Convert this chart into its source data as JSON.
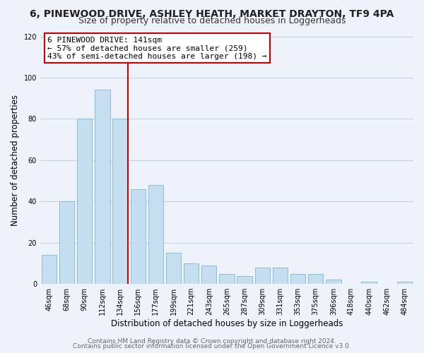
{
  "title": "6, PINEWOOD DRIVE, ASHLEY HEATH, MARKET DRAYTON, TF9 4PA",
  "subtitle": "Size of property relative to detached houses in Loggerheads",
  "xlabel": "Distribution of detached houses by size in Loggerheads",
  "ylabel": "Number of detached properties",
  "bar_labels": [
    "46sqm",
    "68sqm",
    "90sqm",
    "112sqm",
    "134sqm",
    "156sqm",
    "177sqm",
    "199sqm",
    "221sqm",
    "243sqm",
    "265sqm",
    "287sqm",
    "309sqm",
    "331sqm",
    "353sqm",
    "375sqm",
    "396sqm",
    "418sqm",
    "440sqm",
    "462sqm",
    "484sqm"
  ],
  "bar_values": [
    14,
    40,
    80,
    94,
    80,
    46,
    48,
    15,
    10,
    9,
    5,
    4,
    8,
    8,
    5,
    5,
    2,
    0,
    1,
    0,
    1
  ],
  "bar_color": "#c5dff0",
  "bar_edge_color": "#7fb8d8",
  "vline_color": "#cc0000",
  "vline_bar_index": 4,
  "ylim": [
    0,
    120
  ],
  "yticks": [
    0,
    20,
    40,
    60,
    80,
    100,
    120
  ],
  "annotation_title": "6 PINEWOOD DRIVE: 141sqm",
  "annotation_line1": "← 57% of detached houses are smaller (259)",
  "annotation_line2": "43% of semi-detached houses are larger (198) →",
  "footer1": "Contains HM Land Registry data © Crown copyright and database right 2024.",
  "footer2": "Contains public sector information licensed under the Open Government Licence v3.0.",
  "background_color": "#eef2fb",
  "plot_bg_color": "#eef2fb",
  "grid_color": "#c8d0e8",
  "title_fontsize": 10,
  "subtitle_fontsize": 9,
  "axis_label_fontsize": 8.5,
  "tick_fontsize": 7,
  "annotation_fontsize": 8,
  "footer_fontsize": 6.5
}
